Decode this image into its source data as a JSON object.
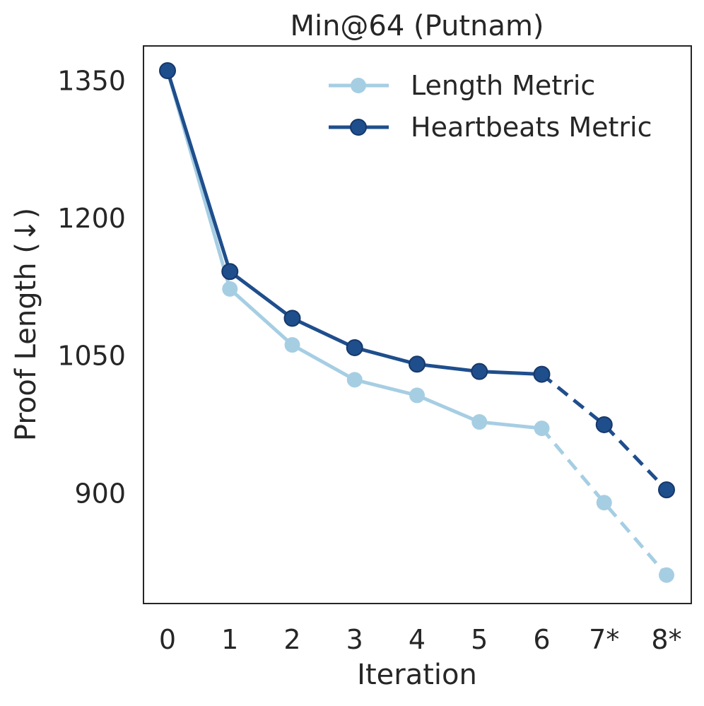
{
  "chart_data": {
    "type": "line",
    "title": "Min@64 (Putnam)",
    "xlabel": "Iteration",
    "ylabel": "Proof Length (↓)",
    "categories": [
      "0",
      "1",
      "2",
      "3",
      "4",
      "5",
      "6",
      "7*",
      "8*"
    ],
    "y_ticks": [
      900,
      1050,
      1200,
      1350
    ],
    "ylim": [
      780,
      1388
    ],
    "grid": false,
    "legend_position": "top-right",
    "dashed_from_index": 6,
    "series": [
      {
        "name": "Length Metric",
        "color": "#a6cee3",
        "values": [
          1361,
          1123,
          1062,
          1024,
          1007,
          978,
          971,
          890,
          811
        ]
      },
      {
        "name": "Heartbeats Metric",
        "color": "#1f4e8c",
        "values": [
          1361,
          1142,
          1091,
          1059,
          1041,
          1033,
          1030,
          975,
          904
        ]
      }
    ]
  }
}
